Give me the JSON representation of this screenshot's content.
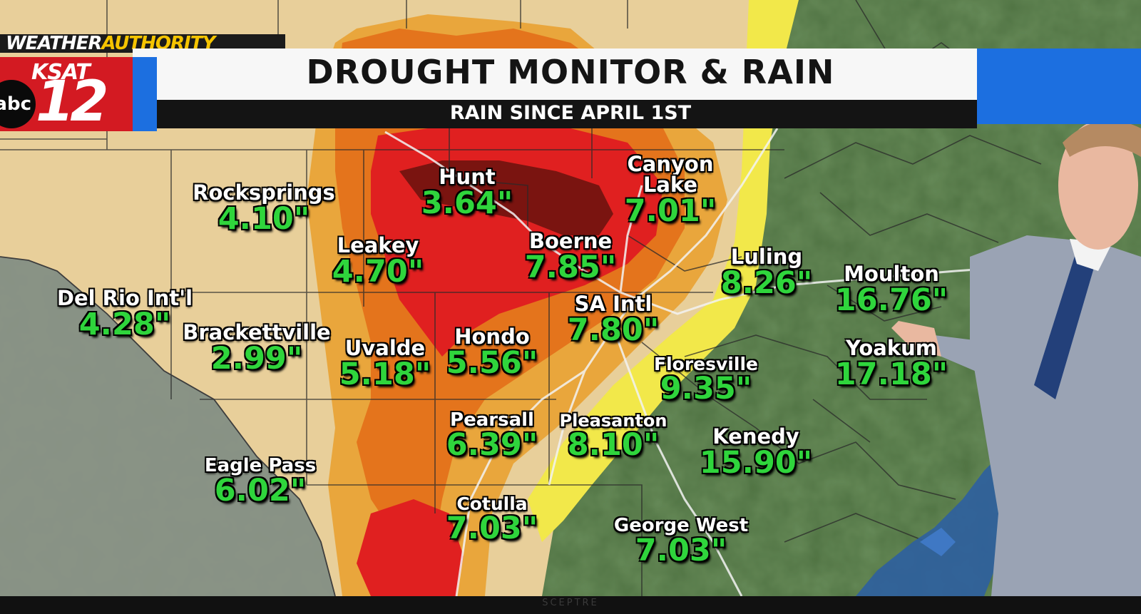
{
  "branding": {
    "weather_word": "WEATHER",
    "authority_word": "AUTHORITY",
    "station": "KSAT",
    "channel": "12",
    "network": "abc"
  },
  "title": "DROUGHT MONITOR & RAIN",
  "subtitle": "RAIN SINCE APRIL 1ST",
  "colors": {
    "abnormally_dry": "#e8cf9a",
    "moderate": "#e9a63c",
    "severe": "#e4741c",
    "extreme": "#e02020",
    "exceptional": "#7a1410",
    "none_yellow": "#f2e84a",
    "rain_value": "#2fd53c",
    "brand_red": "#d31a22",
    "brand_blue": "#1c6fe0"
  },
  "cities": [
    {
      "id": "rocksprings",
      "name": "Rocksprings",
      "value": "4.10\""
    },
    {
      "id": "hunt",
      "name": "Hunt",
      "value": "3.64\""
    },
    {
      "id": "canyon-lake",
      "name": "Canyon Lake",
      "value": "7.01\""
    },
    {
      "id": "leakey",
      "name": "Leakey",
      "value": "4.70\""
    },
    {
      "id": "boerne",
      "name": "Boerne",
      "value": "7.85\""
    },
    {
      "id": "luling",
      "name": "Luling",
      "value": "8.26\""
    },
    {
      "id": "moulton",
      "name": "Moulton",
      "value": "16.76\""
    },
    {
      "id": "del-rio",
      "name": "Del Rio Int'l",
      "value": "4.28\""
    },
    {
      "id": "sa-intl",
      "name": "SA Intl",
      "value": "7.80\""
    },
    {
      "id": "brackettville",
      "name": "Brackettville",
      "value": "2.99\""
    },
    {
      "id": "uvalde",
      "name": "Uvalde",
      "value": "5.18\""
    },
    {
      "id": "hondo",
      "name": "Hondo",
      "value": "5.56\""
    },
    {
      "id": "floresville",
      "name": "Floresville",
      "value": "9.35\""
    },
    {
      "id": "yoakum",
      "name": "Yoakum",
      "value": "17.18\""
    },
    {
      "id": "pearsall",
      "name": "Pearsall",
      "value": "6.39\""
    },
    {
      "id": "pleasanton",
      "name": "Pleasanton",
      "value": "8.10\""
    },
    {
      "id": "kenedy",
      "name": "Kenedy",
      "value": "15.90\""
    },
    {
      "id": "eagle-pass",
      "name": "Eagle Pass",
      "value": "6.02\""
    },
    {
      "id": "cotulla",
      "name": "Cotulla",
      "value": "7.03\""
    },
    {
      "id": "george-west",
      "name": "George West",
      "value": "7.03\""
    }
  ],
  "tv_brand": "SCEPTRE"
}
